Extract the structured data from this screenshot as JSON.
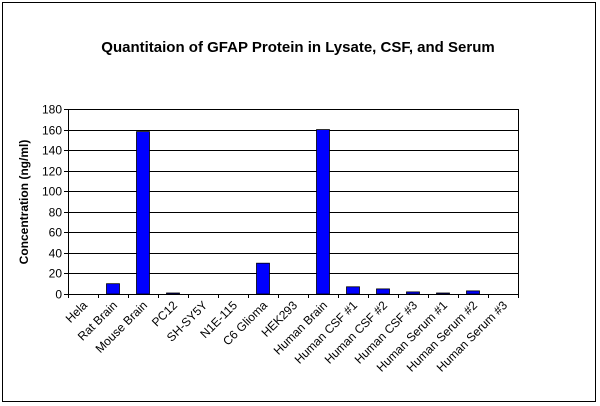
{
  "chart_data": {
    "type": "bar",
    "title": "Quantitaion of GFAP Protein in Lysate, CSF, and Serum",
    "xlabel": "",
    "ylabel": "Concentration (ng/ml)",
    "ylim": [
      0,
      180
    ],
    "yticks": [
      0,
      20,
      40,
      60,
      80,
      100,
      120,
      140,
      160,
      180
    ],
    "grid": true,
    "legend": "none",
    "bar_color": "#0000FF",
    "categories": [
      "Hela",
      "Rat Brain",
      "Mouse Brain",
      "PC12",
      "SH-SY5Y",
      "N1E-115",
      "C6 Glioma",
      "HEK293",
      "Human Brain",
      "Human CSF #1",
      "Human CSF #2",
      "Human CSF #3",
      "Human Serum #1",
      "Human Serum #2",
      "Human Serum #3"
    ],
    "values": [
      0,
      10,
      158,
      1,
      0,
      0,
      30,
      0,
      160,
      7,
      5,
      2,
      1,
      3,
      0
    ]
  }
}
